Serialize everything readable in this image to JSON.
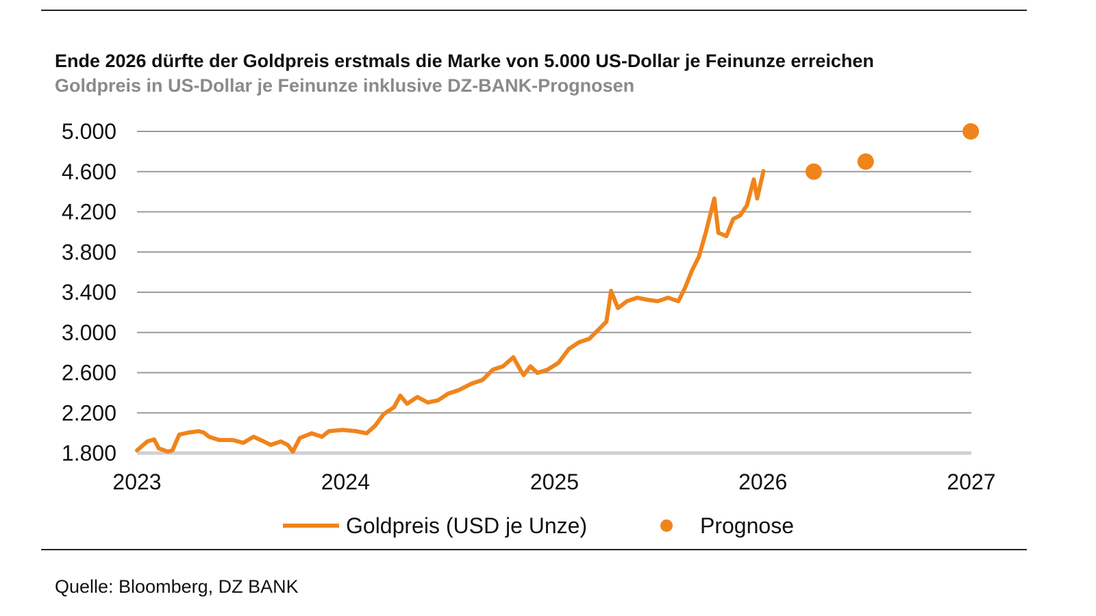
{
  "chart_data": {
    "type": "line",
    "title": "Ende 2026 dürfte der Goldpreis erstmals die Marke von 5.000 US-Dollar je Feinunze erreichen",
    "subtitle": "Goldpreis in US-Dollar je Feinunze inklusive DZ-BANK-Prognosen",
    "source": "Quelle: Bloomberg, DZ BANK",
    "xlabel": "",
    "ylabel": "",
    "xlim": [
      "2023-01-01",
      "2027-01-01"
    ],
    "ylim": [
      1800,
      5000
    ],
    "x_ticks": [
      "2023",
      "2024",
      "2025",
      "2026",
      "2027"
    ],
    "y_ticks": [
      {
        "value": 1800,
        "label": "1.800"
      },
      {
        "value": 2200,
        "label": "2.200"
      },
      {
        "value": 2600,
        "label": "2.600"
      },
      {
        "value": 3000,
        "label": "3.000"
      },
      {
        "value": 3400,
        "label": "3.400"
      },
      {
        "value": 3800,
        "label": "3.800"
      },
      {
        "value": 4200,
        "label": "4.200"
      },
      {
        "value": 4600,
        "label": "4.600"
      },
      {
        "value": 5000,
        "label": "5.000"
      }
    ],
    "grid": "horizontal",
    "legend_position": "bottom",
    "color": "#F0841C",
    "series": [
      {
        "name": "Goldpreis (USD je Unze)",
        "kind": "line",
        "points": [
          [
            "2023-01-01",
            1827
          ],
          [
            "2023-01-19",
            1916
          ],
          [
            "2023-01-31",
            1936
          ],
          [
            "2023-02-08",
            1848
          ],
          [
            "2023-02-24",
            1814
          ],
          [
            "2023-03-04",
            1827
          ],
          [
            "2023-03-16",
            1984
          ],
          [
            "2023-04-01",
            2004
          ],
          [
            "2023-04-19",
            2018
          ],
          [
            "2023-04-28",
            2004
          ],
          [
            "2023-05-07",
            1963
          ],
          [
            "2023-05-25",
            1930
          ],
          [
            "2023-06-18",
            1930
          ],
          [
            "2023-07-06",
            1902
          ],
          [
            "2023-07-24",
            1963
          ],
          [
            "2023-08-11",
            1916
          ],
          [
            "2023-08-23",
            1882
          ],
          [
            "2023-09-10",
            1916
          ],
          [
            "2023-09-22",
            1882
          ],
          [
            "2023-10-01",
            1814
          ],
          [
            "2023-10-13",
            1950
          ],
          [
            "2023-11-03",
            1997
          ],
          [
            "2023-11-21",
            1963
          ],
          [
            "2023-12-03",
            2018
          ],
          [
            "2023-12-27",
            2031
          ],
          [
            "2024-01-20",
            2018
          ],
          [
            "2024-02-07",
            1997
          ],
          [
            "2024-02-22",
            2072
          ],
          [
            "2024-03-08",
            2188
          ],
          [
            "2024-03-26",
            2256
          ],
          [
            "2024-04-06",
            2372
          ],
          [
            "2024-04-18",
            2290
          ],
          [
            "2024-05-06",
            2358
          ],
          [
            "2024-05-24",
            2304
          ],
          [
            "2024-06-11",
            2324
          ],
          [
            "2024-06-29",
            2392
          ],
          [
            "2024-07-17",
            2426
          ],
          [
            "2024-08-10",
            2494
          ],
          [
            "2024-08-28",
            2528
          ],
          [
            "2024-09-15",
            2630
          ],
          [
            "2024-10-03",
            2664
          ],
          [
            "2024-10-21",
            2753
          ],
          [
            "2024-11-02",
            2630
          ],
          [
            "2024-11-08",
            2576
          ],
          [
            "2024-11-20",
            2664
          ],
          [
            "2024-12-02",
            2597
          ],
          [
            "2024-12-20",
            2630
          ],
          [
            "2025-01-08",
            2698
          ],
          [
            "2025-01-26",
            2835
          ],
          [
            "2025-02-13",
            2903
          ],
          [
            "2025-03-03",
            2937
          ],
          [
            "2025-03-21",
            3039
          ],
          [
            "2025-04-02",
            3107
          ],
          [
            "2025-04-10",
            3414
          ],
          [
            "2025-04-22",
            3243
          ],
          [
            "2025-05-08",
            3311
          ],
          [
            "2025-05-26",
            3346
          ],
          [
            "2025-06-13",
            3325
          ],
          [
            "2025-07-01",
            3311
          ],
          [
            "2025-07-19",
            3346
          ],
          [
            "2025-08-06",
            3311
          ],
          [
            "2025-08-18",
            3448
          ],
          [
            "2025-08-30",
            3618
          ],
          [
            "2025-09-11",
            3754
          ],
          [
            "2025-09-23",
            3992
          ],
          [
            "2025-10-08",
            4333
          ],
          [
            "2025-10-15",
            3992
          ],
          [
            "2025-10-29",
            3958
          ],
          [
            "2025-11-10",
            4129
          ],
          [
            "2025-11-22",
            4163
          ],
          [
            "2025-12-04",
            4265
          ],
          [
            "2025-12-16",
            4523
          ],
          [
            "2025-12-22",
            4333
          ],
          [
            "2026-01-02",
            4605
          ]
        ]
      },
      {
        "name": "Prognose",
        "kind": "scatter",
        "points": [
          [
            "2026-03-31",
            4600
          ],
          [
            "2026-06-30",
            4700
          ],
          [
            "2026-12-31",
            5000
          ]
        ]
      }
    ]
  }
}
